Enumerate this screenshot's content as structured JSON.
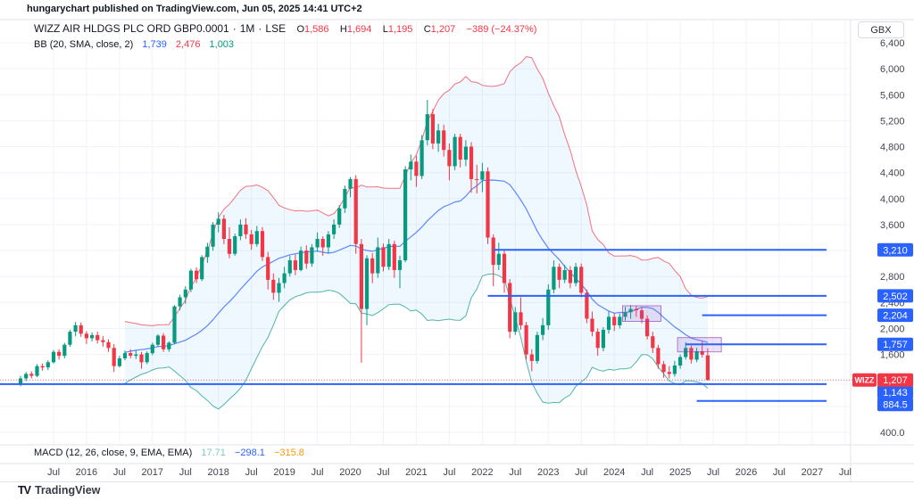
{
  "attribution": "hungarychart published on TradingView.com, Jun 05, 2025 14:41 UTC+2",
  "legend": {
    "symbol": "WIZZ AIR HLDGS PLC ORD GBP0.0001",
    "separator": "·",
    "interval": "1M",
    "exchange": "LSE",
    "o_label": "O",
    "o": "1,586",
    "h_label": "H",
    "h": "1,694",
    "l_label": "L",
    "l": "1,195",
    "c_label": "C",
    "c": "1,207",
    "change": "−389 (−24.37%)",
    "bb_title": "BB (20, SMA, close, 2)",
    "bb_basis": "1,739",
    "bb_upper": "2,476",
    "bb_lower": "1,003"
  },
  "macd": {
    "title": "MACD (12, 26, close, 9, EMA, EMA)",
    "histogram": "17.71",
    "macd": "−298.1",
    "signal": "−315.8"
  },
  "logo": {
    "mark": "TV",
    "text": "TradingView"
  },
  "price_axis": {
    "currency": "GBX",
    "ticks": [
      {
        "p": 6400,
        "t": "6,400"
      },
      {
        "p": 6000,
        "t": "6,000"
      },
      {
        "p": 5600,
        "t": "5,600"
      },
      {
        "p": 5200,
        "t": "5,200"
      },
      {
        "p": 4800,
        "t": "4,800"
      },
      {
        "p": 4400,
        "t": "4,400"
      },
      {
        "p": 4000,
        "t": "4,000"
      },
      {
        "p": 3600,
        "t": "3,600"
      },
      {
        "p": 3200,
        "t": "3,200"
      },
      {
        "p": 2800,
        "t": "2,800"
      },
      {
        "p": 2400,
        "t": "2,400"
      },
      {
        "p": 2000,
        "t": "2,000"
      },
      {
        "p": 1600,
        "t": "1,600"
      },
      {
        "p": 1200,
        "t": "1,200"
      },
      {
        "p": 800,
        "t": "800.0"
      },
      {
        "p": 400,
        "t": "400.0"
      }
    ],
    "labels": [
      {
        "t": "3,210",
        "p": 3210
      },
      {
        "t": "2,502",
        "p": 2502
      },
      {
        "t": "2,204",
        "p": 2204
      },
      {
        "t": "1,757",
        "p": 1757
      },
      {
        "t": "1,143",
        "p": 1143,
        "dy": 9
      },
      {
        "t": "884.5",
        "p": 884.5,
        "dy": 4
      }
    ],
    "last": {
      "tag": "WIZZ",
      "t": "1,207"
    }
  },
  "time_axis": {
    "first_m": 6,
    "step": 6,
    "labels": [
      "Jul",
      "2016",
      "Jul",
      "2017",
      "Jul",
      "2018",
      "Jul",
      "2019",
      "Jul",
      "2020",
      "Jul",
      "2021",
      "Jul",
      "2022",
      "Jul",
      "2023",
      "Jul",
      "2024",
      "Jul",
      "2025",
      "Jul",
      "2026",
      "Jul",
      "2027",
      "Jul"
    ]
  },
  "chart_data": {
    "type": "candlestick",
    "symbol": "WIZZ AIR HLDGS PLC ORD GBP0.0001",
    "interval": "1M",
    "exchange": "LSE",
    "currency": "GBX",
    "start_month": "2015-01",
    "ylim": [
      400,
      6400
    ],
    "grid": true,
    "colors": {
      "up": "#089981",
      "down": "#f23645",
      "bollinger_basis": "#2962ff",
      "bollinger_upper": "#f23645",
      "bollinger_lower": "#089981",
      "bollinger_fill": "rgba(33,150,243,0.07)",
      "ray": "#2962ff",
      "last_price": "#f23645",
      "zone_fill": "rgba(156,90,200,0.18)",
      "zone_stroke": "rgba(140,60,180,0.65)"
    },
    "bollinger": {
      "length": 20,
      "mult": 2
    },
    "last_price": 1207,
    "last_ohlc": {
      "open": 1586,
      "high": 1694,
      "low": 1195,
      "close": 1207,
      "change": -389,
      "change_pct": -24.37
    },
    "horizontal_lines": [
      {
        "price": 3210,
        "from": "2022-03"
      },
      {
        "price": 2502,
        "from": "2022-02"
      },
      {
        "price": 2204,
        "from": "2025-05"
      },
      {
        "price": 1757,
        "from": "2025-02"
      },
      {
        "price": 1143,
        "from": null
      },
      {
        "price": 884.5,
        "from": "2025-04"
      }
    ],
    "boxes": [
      {
        "from": "2024-03",
        "to": "2024-09",
        "top": 2350,
        "bottom": 2110
      },
      {
        "from": "2025-01",
        "to": "2025-08",
        "top": 1860,
        "bottom": 1640
      }
    ],
    "candles": [
      [
        1150,
        1270,
        1110,
        1230
      ],
      [
        1230,
        1330,
        1190,
        1300
      ],
      [
        1300,
        1340,
        1230,
        1270
      ],
      [
        1270,
        1450,
        1250,
        1420
      ],
      [
        1420,
        1460,
        1350,
        1400
      ],
      [
        1400,
        1510,
        1360,
        1480
      ],
      [
        1480,
        1670,
        1460,
        1640
      ],
      [
        1640,
        1680,
        1520,
        1580
      ],
      [
        1580,
        1780,
        1540,
        1750
      ],
      [
        1750,
        1980,
        1720,
        1950
      ],
      [
        1950,
        2100,
        1880,
        2050
      ],
      [
        2050,
        2090,
        1870,
        1920
      ],
      [
        1920,
        1960,
        1760,
        1850
      ],
      [
        1850,
        1940,
        1800,
        1900
      ],
      [
        1900,
        1950,
        1770,
        1820
      ],
      [
        1820,
        1880,
        1720,
        1790
      ],
      [
        1790,
        1830,
        1640,
        1700
      ],
      [
        1700,
        1760,
        1330,
        1420
      ],
      [
        1420,
        1580,
        1400,
        1540
      ],
      [
        1540,
        1660,
        1510,
        1620
      ],
      [
        1620,
        1680,
        1540,
        1580
      ],
      [
        1580,
        1660,
        1530,
        1600
      ],
      [
        1600,
        1640,
        1380,
        1480
      ],
      [
        1480,
        1650,
        1450,
        1620
      ],
      [
        1620,
        1780,
        1590,
        1750
      ],
      [
        1750,
        1910,
        1720,
        1890
      ],
      [
        1890,
        1930,
        1640,
        1680
      ],
      [
        1680,
        1800,
        1640,
        1780
      ],
      [
        1780,
        2360,
        1760,
        2340
      ],
      [
        2340,
        2520,
        2280,
        2480
      ],
      [
        2480,
        2650,
        2380,
        2600
      ],
      [
        2600,
        2920,
        2560,
        2890
      ],
      [
        2890,
        2940,
        2700,
        2760
      ],
      [
        2760,
        3130,
        2730,
        3100
      ],
      [
        3100,
        3320,
        3010,
        3260
      ],
      [
        3260,
        3640,
        3200,
        3600
      ],
      [
        3600,
        3790,
        3480,
        3690
      ],
      [
        3690,
        3750,
        3300,
        3380
      ],
      [
        3380,
        3560,
        3080,
        3150
      ],
      [
        3150,
        3460,
        3120,
        3420
      ],
      [
        3420,
        3680,
        3360,
        3600
      ],
      [
        3600,
        3700,
        3380,
        3450
      ],
      [
        3450,
        3520,
        3210,
        3300
      ],
      [
        3300,
        3580,
        3260,
        3500
      ],
      [
        3500,
        3560,
        3040,
        3100
      ],
      [
        3100,
        3180,
        2600,
        2750
      ],
      [
        2750,
        2850,
        2440,
        2550
      ],
      [
        2550,
        2780,
        2410,
        2700
      ],
      [
        2700,
        2950,
        2620,
        2850
      ],
      [
        2850,
        3120,
        2800,
        3050
      ],
      [
        3050,
        3140,
        2820,
        2900
      ],
      [
        2900,
        3260,
        2880,
        3200
      ],
      [
        3200,
        3280,
        2920,
        3000
      ],
      [
        3000,
        3300,
        2950,
        3250
      ],
      [
        3250,
        3480,
        3180,
        3380
      ],
      [
        3380,
        3420,
        3120,
        3250
      ],
      [
        3250,
        3500,
        3150,
        3450
      ],
      [
        3450,
        3680,
        3380,
        3600
      ],
      [
        3600,
        3900,
        3550,
        3850
      ],
      [
        3850,
        4200,
        3780,
        4150
      ],
      [
        4150,
        4330,
        4020,
        4300
      ],
      [
        4300,
        4360,
        3150,
        3300
      ],
      [
        3300,
        3380,
        1475,
        2300
      ],
      [
        2300,
        3130,
        2050,
        3080
      ],
      [
        3080,
        3160,
        2700,
        2850
      ],
      [
        2850,
        3400,
        2780,
        3250
      ],
      [
        3250,
        3310,
        2880,
        2950
      ],
      [
        2950,
        3380,
        2900,
        3300
      ],
      [
        3300,
        3350,
        2780,
        2900
      ],
      [
        2900,
        3120,
        2620,
        3050
      ],
      [
        3050,
        4500,
        3020,
        4450
      ],
      [
        4450,
        4680,
        4280,
        4570
      ],
      [
        4570,
        4660,
        4180,
        4350
      ],
      [
        4350,
        4980,
        4300,
        4900
      ],
      [
        4900,
        5520,
        4820,
        5300
      ],
      [
        5300,
        5380,
        4760,
        4850
      ],
      [
        4850,
        5150,
        4720,
        5050
      ],
      [
        5050,
        5140,
        4650,
        4750
      ],
      [
        4750,
        4850,
        4280,
        4500
      ],
      [
        4500,
        5000,
        4440,
        4950
      ],
      [
        4950,
        5000,
        4480,
        4600
      ],
      [
        4600,
        4900,
        4500,
        4800
      ],
      [
        4800,
        4870,
        4090,
        4300
      ],
      [
        4300,
        4520,
        4080,
        4290
      ],
      [
        4290,
        4550,
        4100,
        4420
      ],
      [
        4420,
        4480,
        3300,
        3400
      ],
      [
        3400,
        3450,
        2650,
        2980
      ],
      [
        2980,
        3320,
        2900,
        3150
      ],
      [
        3150,
        3220,
        2550,
        2700
      ],
      [
        2700,
        2760,
        1850,
        1950
      ],
      [
        1950,
        2330,
        1900,
        2250
      ],
      [
        2250,
        2480,
        1980,
        2050
      ],
      [
        2050,
        2100,
        1520,
        1600
      ],
      [
        1600,
        1680,
        1340,
        1500
      ],
      [
        1500,
        1950,
        1460,
        1900
      ],
      [
        1900,
        2160,
        1820,
        2050
      ],
      [
        2050,
        2680,
        1980,
        2600
      ],
      [
        2600,
        3050,
        2540,
        2950
      ],
      [
        2950,
        3000,
        2620,
        2750
      ],
      [
        2750,
        2980,
        2700,
        2900
      ],
      [
        2900,
        2960,
        2620,
        2700
      ],
      [
        2700,
        3010,
        2650,
        2950
      ],
      [
        2950,
        3000,
        2480,
        2550
      ],
      [
        2550,
        2600,
        2080,
        2150
      ],
      [
        2150,
        2260,
        1880,
        1950
      ],
      [
        1950,
        2000,
        1580,
        1700
      ],
      [
        1700,
        2020,
        1650,
        1980
      ],
      [
        1980,
        2260,
        1920,
        2180
      ],
      [
        2180,
        2240,
        1960,
        2050
      ],
      [
        2050,
        2230,
        2000,
        2180
      ],
      [
        2180,
        2330,
        2120,
        2250
      ],
      [
        2250,
        2360,
        2150,
        2300
      ],
      [
        2300,
        2350,
        2180,
        2280
      ],
      [
        2280,
        2330,
        2080,
        2150
      ],
      [
        2150,
        2200,
        1830,
        1880
      ],
      [
        1880,
        1950,
        1620,
        1700
      ],
      [
        1700,
        1750,
        1380,
        1450
      ],
      [
        1450,
        1500,
        1240,
        1330
      ],
      [
        1330,
        1420,
        1230,
        1300
      ],
      [
        1300,
        1500,
        1260,
        1430
      ],
      [
        1430,
        1600,
        1380,
        1560
      ],
      [
        1560,
        1790,
        1520,
        1700
      ],
      [
        1700,
        1740,
        1460,
        1520
      ],
      [
        1520,
        1700,
        1480,
        1650
      ],
      [
        1650,
        1810,
        1550,
        1596
      ],
      [
        1586,
        1694,
        1195,
        1207
      ]
    ]
  }
}
